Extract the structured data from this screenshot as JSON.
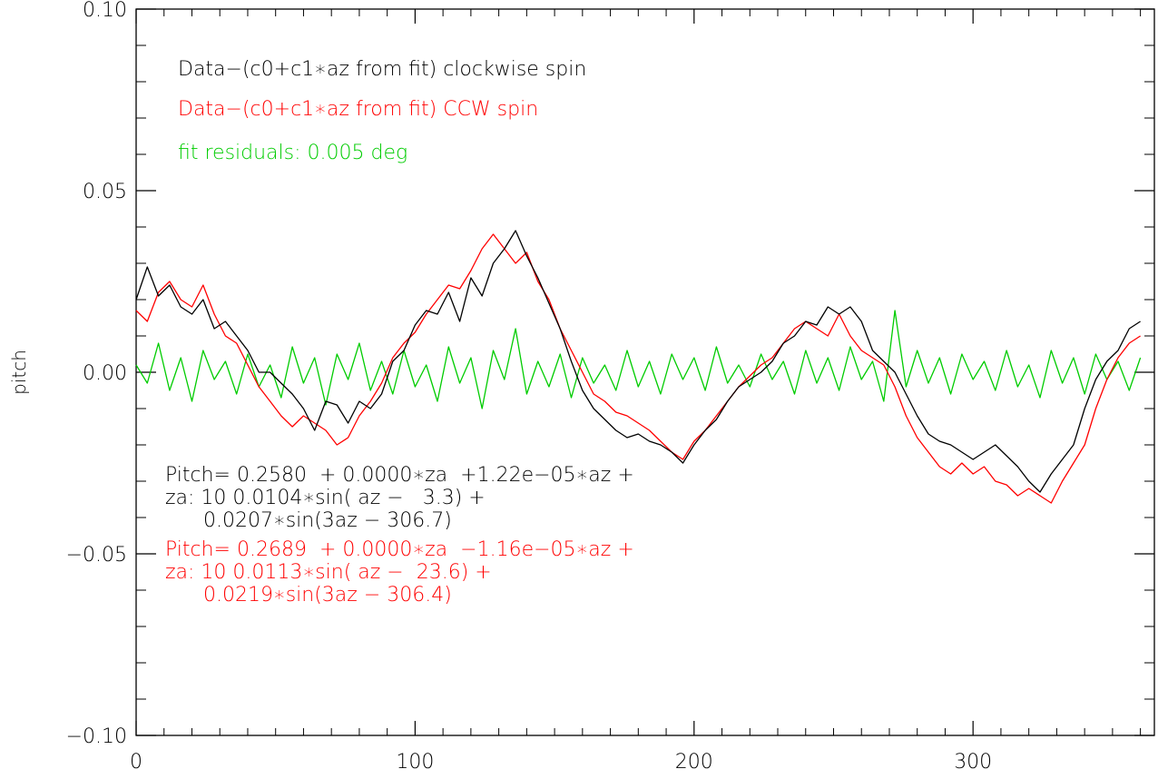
{
  "chart_data": {
    "type": "line",
    "title": "",
    "xlabel": "",
    "ylabel": "pitch",
    "xlim": [
      0,
      365
    ],
    "ylim": [
      -0.1,
      0.1
    ],
    "grid": false,
    "legend_position": "top-left",
    "x_ticks": [
      {
        "value": 0,
        "label": "0"
      },
      {
        "value": 100,
        "label": "100"
      },
      {
        "value": 200,
        "label": "200"
      },
      {
        "value": 300,
        "label": "300"
      }
    ],
    "y_ticks": [
      {
        "value": -0.1,
        "label": "−0.10"
      },
      {
        "value": -0.05,
        "label": "−0.05"
      },
      {
        "value": 0.0,
        "label": "0.00"
      },
      {
        "value": 0.05,
        "label": "0.05"
      },
      {
        "value": 0.1,
        "label": "0.10"
      }
    ],
    "legend": [
      {
        "text": "Data−(c0+c1∗az from fit) clockwise spin",
        "color": "#000000"
      },
      {
        "text": "Data−(c0+c1∗az from fit) CCW spin",
        "color": "#ff0000"
      },
      {
        "text": "fit residuals: 0.005 deg",
        "color": "#00cc00"
      }
    ],
    "annotations": [
      {
        "lines": [
          "Pitch= 0.2580  + 0.0000∗za  +1.22e−05∗az +",
          "za: 10 0.0104∗sin( az −   3.3) +",
          "      0.0207∗sin(3az − 306.7)"
        ],
        "color": "#000000"
      },
      {
        "lines": [
          "Pitch= 0.2689  + 0.0000∗za  −1.16e−05∗az +",
          "za: 10 0.0113∗sin( az −  23.6) +",
          "      0.0219∗sin(3az − 306.4)"
        ],
        "color": "#ff0000"
      }
    ],
    "series": [
      {
        "name": "Data−(c0+c1∗az from fit) clockwise spin",
        "color": "#000000",
        "x": [
          0,
          4,
          8,
          12,
          16,
          20,
          24,
          28,
          32,
          36,
          40,
          44,
          48,
          52,
          56,
          60,
          64,
          68,
          72,
          76,
          80,
          84,
          88,
          92,
          96,
          100,
          104,
          108,
          112,
          116,
          120,
          124,
          128,
          132,
          136,
          140,
          144,
          148,
          152,
          156,
          160,
          164,
          168,
          172,
          176,
          180,
          184,
          188,
          192,
          196,
          200,
          204,
          208,
          212,
          216,
          220,
          224,
          228,
          232,
          236,
          240,
          244,
          248,
          252,
          256,
          260,
          264,
          268,
          272,
          276,
          280,
          284,
          288,
          292,
          296,
          300,
          304,
          308,
          312,
          316,
          320,
          324,
          328,
          332,
          336,
          340,
          344,
          348,
          352,
          356,
          360
        ],
        "y": [
          0.02,
          0.029,
          0.021,
          0.024,
          0.018,
          0.016,
          0.02,
          0.012,
          0.014,
          0.01,
          0.006,
          0.0,
          0.0,
          -0.003,
          -0.006,
          -0.01,
          -0.016,
          -0.008,
          -0.009,
          -0.014,
          -0.008,
          -0.01,
          -0.006,
          0.003,
          0.006,
          0.013,
          0.017,
          0.016,
          0.022,
          0.014,
          0.026,
          0.021,
          0.03,
          0.034,
          0.039,
          0.032,
          0.026,
          0.019,
          0.012,
          0.003,
          -0.005,
          -0.01,
          -0.013,
          -0.016,
          -0.018,
          -0.017,
          -0.019,
          -0.02,
          -0.022,
          -0.025,
          -0.02,
          -0.016,
          -0.013,
          -0.008,
          -0.004,
          -0.002,
          0.0,
          0.003,
          0.008,
          0.01,
          0.014,
          0.013,
          0.018,
          0.016,
          0.018,
          0.014,
          0.006,
          0.003,
          0.0,
          -0.006,
          -0.012,
          -0.017,
          -0.019,
          -0.02,
          -0.022,
          -0.024,
          -0.022,
          -0.02,
          -0.023,
          -0.026,
          -0.03,
          -0.033,
          -0.028,
          -0.024,
          -0.02,
          -0.01,
          -0.002,
          0.003,
          0.006,
          0.012,
          0.014
        ]
      },
      {
        "name": "Data−(c0+c1∗az from fit) CCW spin",
        "color": "#ff0000",
        "x": [
          0,
          4,
          8,
          12,
          16,
          20,
          24,
          28,
          32,
          36,
          40,
          44,
          48,
          52,
          56,
          60,
          64,
          68,
          72,
          76,
          80,
          84,
          88,
          92,
          96,
          100,
          104,
          108,
          112,
          116,
          120,
          124,
          128,
          132,
          136,
          140,
          144,
          148,
          152,
          156,
          160,
          164,
          168,
          172,
          176,
          180,
          184,
          188,
          192,
          196,
          200,
          204,
          208,
          212,
          216,
          220,
          224,
          228,
          232,
          236,
          240,
          244,
          248,
          252,
          256,
          260,
          264,
          268,
          272,
          276,
          280,
          284,
          288,
          292,
          296,
          300,
          304,
          308,
          312,
          316,
          320,
          324,
          328,
          332,
          336,
          340,
          344,
          348,
          352,
          356,
          360
        ],
        "y": [
          0.017,
          0.014,
          0.022,
          0.025,
          0.02,
          0.018,
          0.024,
          0.016,
          0.01,
          0.008,
          0.002,
          -0.004,
          -0.008,
          -0.012,
          -0.015,
          -0.012,
          -0.014,
          -0.016,
          -0.02,
          -0.018,
          -0.012,
          -0.008,
          -0.003,
          0.004,
          0.008,
          0.011,
          0.016,
          0.02,
          0.024,
          0.023,
          0.028,
          0.034,
          0.038,
          0.034,
          0.03,
          0.033,
          0.025,
          0.02,
          0.012,
          0.006,
          0.0,
          -0.006,
          -0.008,
          -0.011,
          -0.012,
          -0.014,
          -0.016,
          -0.019,
          -0.022,
          -0.024,
          -0.019,
          -0.016,
          -0.012,
          -0.008,
          -0.004,
          -0.001,
          0.002,
          0.004,
          0.008,
          0.012,
          0.014,
          0.012,
          0.01,
          0.016,
          0.01,
          0.006,
          0.004,
          0.002,
          -0.004,
          -0.012,
          -0.018,
          -0.022,
          -0.026,
          -0.028,
          -0.025,
          -0.028,
          -0.026,
          -0.03,
          -0.031,
          -0.034,
          -0.032,
          -0.034,
          -0.036,
          -0.03,
          -0.025,
          -0.02,
          -0.01,
          -0.002,
          0.004,
          0.008,
          0.01
        ]
      },
      {
        "name": "fit residuals: 0.005 deg",
        "color": "#00cc00",
        "x": [
          0,
          4,
          8,
          12,
          16,
          20,
          24,
          28,
          32,
          36,
          40,
          44,
          48,
          52,
          56,
          60,
          64,
          68,
          72,
          76,
          80,
          84,
          88,
          92,
          96,
          100,
          104,
          108,
          112,
          116,
          120,
          124,
          128,
          132,
          136,
          140,
          144,
          148,
          152,
          156,
          160,
          164,
          168,
          172,
          176,
          180,
          184,
          188,
          192,
          196,
          200,
          204,
          208,
          212,
          216,
          220,
          224,
          228,
          232,
          236,
          240,
          244,
          248,
          252,
          256,
          260,
          264,
          268,
          272,
          276,
          280,
          284,
          288,
          292,
          296,
          300,
          304,
          308,
          312,
          316,
          320,
          324,
          328,
          332,
          336,
          340,
          344,
          348,
          352,
          356,
          360
        ],
        "y": [
          0.002,
          -0.003,
          0.008,
          -0.005,
          0.004,
          -0.008,
          0.006,
          -0.002,
          0.003,
          -0.006,
          0.005,
          -0.004,
          0.002,
          -0.007,
          0.007,
          -0.003,
          0.004,
          -0.009,
          0.005,
          -0.002,
          0.008,
          -0.005,
          0.003,
          -0.006,
          0.006,
          -0.004,
          0.002,
          -0.008,
          0.007,
          -0.003,
          0.004,
          -0.01,
          0.006,
          -0.002,
          0.012,
          -0.006,
          0.003,
          -0.004,
          0.005,
          -0.007,
          0.004,
          -0.003,
          0.002,
          -0.005,
          0.006,
          -0.004,
          0.003,
          -0.006,
          0.005,
          -0.002,
          0.004,
          -0.005,
          0.007,
          -0.003,
          0.002,
          -0.004,
          0.005,
          -0.002,
          0.003,
          -0.006,
          0.006,
          -0.003,
          0.004,
          -0.005,
          0.007,
          -0.002,
          0.003,
          -0.008,
          0.017,
          -0.004,
          0.006,
          -0.003,
          0.004,
          -0.006,
          0.005,
          -0.002,
          0.003,
          -0.005,
          0.006,
          -0.004,
          0.002,
          -0.007,
          0.006,
          -0.003,
          0.004,
          -0.006,
          0.005,
          -0.002,
          0.003,
          -0.005,
          0.004
        ]
      }
    ]
  }
}
